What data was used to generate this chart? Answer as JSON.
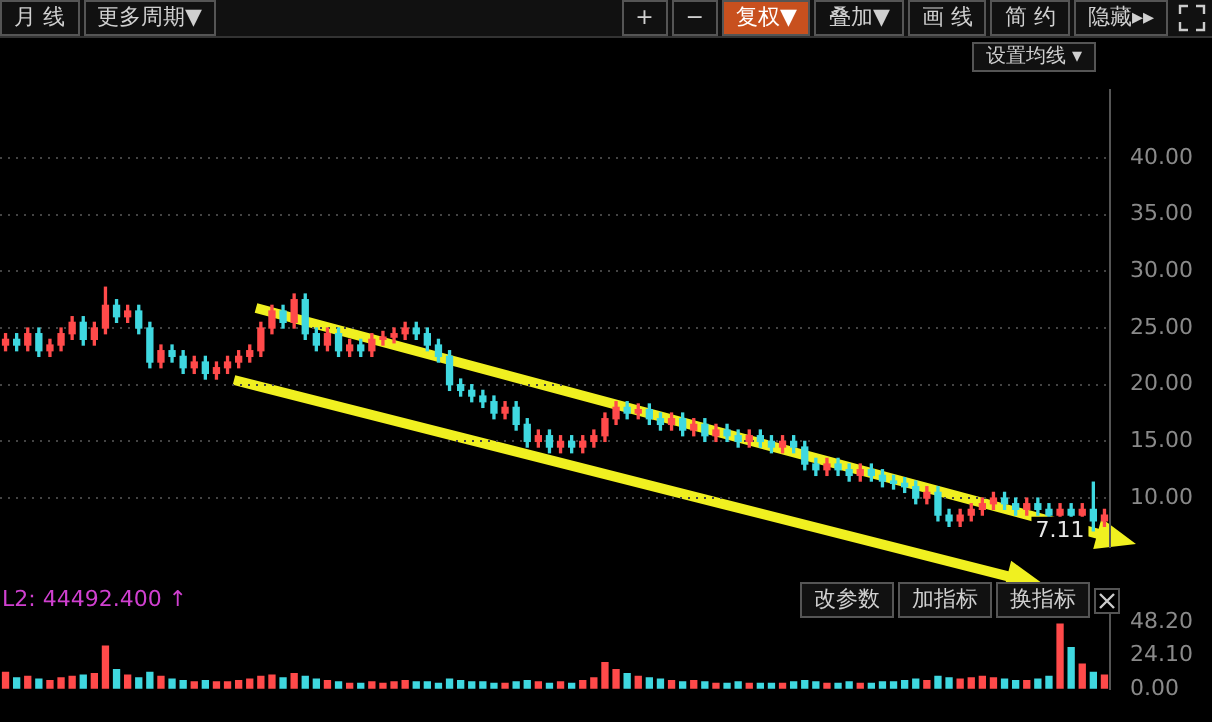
{
  "chart_data": [
    {
      "type": "candlestick",
      "categories": [
        null,
        null,
        null,
        null,
        null,
        null,
        null,
        null,
        null,
        null,
        null,
        null,
        null,
        null,
        null,
        null,
        null,
        null,
        null,
        null,
        null,
        null,
        null,
        null,
        null,
        null,
        null,
        null,
        null,
        null,
        null,
        null,
        null,
        null,
        null,
        null,
        null,
        null,
        null,
        null,
        null,
        null,
        null,
        null,
        null,
        null,
        null,
        null,
        null,
        null,
        null,
        null,
        null,
        null,
        null,
        null,
        null,
        null,
        null,
        null,
        null,
        null,
        null,
        null,
        null,
        null,
        null,
        null,
        null,
        null,
        null,
        null,
        null,
        null,
        null,
        null,
        null,
        null,
        null,
        null,
        null,
        null,
        null,
        null,
        null,
        null,
        null,
        null,
        null,
        null,
        null,
        null,
        null,
        null,
        null,
        null,
        null,
        null,
        null,
        null
      ],
      "ohlc": [
        [
          23.5,
          24.5,
          23,
          24
        ],
        [
          24,
          24.5,
          23,
          23.5
        ],
        [
          23.5,
          25,
          23,
          24.5
        ],
        [
          24.5,
          25,
          22.5,
          23
        ],
        [
          23,
          24,
          22.5,
          23.5
        ],
        [
          23.5,
          25,
          23,
          24.5
        ],
        [
          24.5,
          26,
          24,
          25.5
        ],
        [
          25.5,
          26,
          23.5,
          24
        ],
        [
          24,
          25.5,
          23.5,
          25
        ],
        [
          25,
          28.6,
          24.5,
          27
        ],
        [
          27,
          27.5,
          25.5,
          26
        ],
        [
          26,
          27,
          25.5,
          26.5
        ],
        [
          26.5,
          27,
          24.5,
          25
        ],
        [
          25,
          25.5,
          21.5,
          22
        ],
        [
          22,
          23.5,
          21.5,
          23
        ],
        [
          23,
          23.5,
          22,
          22.5
        ],
        [
          22.5,
          23,
          21,
          21.5
        ],
        [
          21.5,
          22.5,
          21,
          22
        ],
        [
          22,
          22.5,
          20.5,
          21
        ],
        [
          21,
          22,
          20.5,
          21.5
        ],
        [
          21.5,
          22.5,
          21,
          22
        ],
        [
          22,
          23,
          21.5,
          22.5
        ],
        [
          22.5,
          23.5,
          22,
          23
        ],
        [
          23,
          25.5,
          22.5,
          25
        ],
        [
          25,
          27,
          24.5,
          26.5
        ],
        [
          26.5,
          27,
          25,
          25.5
        ],
        [
          25.5,
          28,
          25,
          27.5
        ],
        [
          27.5,
          28,
          24,
          24.5
        ],
        [
          24.5,
          25,
          23,
          23.5
        ],
        [
          23.5,
          25,
          23,
          24.5
        ],
        [
          24.5,
          25,
          22.5,
          23
        ],
        [
          23,
          24,
          22.5,
          23.5
        ],
        [
          23.5,
          24,
          22.5,
          23
        ],
        [
          23,
          24.5,
          22.5,
          24
        ],
        [
          24,
          24.7,
          23.5,
          24.2
        ],
        [
          24.2,
          25,
          23.7,
          24.5
        ],
        [
          24.5,
          25.5,
          24,
          25
        ],
        [
          25,
          25.5,
          24,
          24.5
        ],
        [
          24.5,
          25,
          23,
          23.5
        ],
        [
          23.5,
          24,
          22,
          22.5
        ],
        [
          22.5,
          23,
          19.5,
          20
        ],
        [
          20,
          20.5,
          19,
          19.5
        ],
        [
          19.5,
          20,
          18.5,
          19
        ],
        [
          19,
          19.5,
          18,
          18.5
        ],
        [
          18.5,
          19,
          17,
          17.5
        ],
        [
          17.5,
          18.5,
          17,
          18
        ],
        [
          18,
          18.5,
          16,
          16.5
        ],
        [
          16.5,
          17,
          14.5,
          15
        ],
        [
          15,
          16,
          14.5,
          15.5
        ],
        [
          15.5,
          16,
          14,
          14.5
        ],
        [
          14.5,
          15.5,
          14,
          15
        ],
        [
          15,
          15.5,
          14,
          14.5
        ],
        [
          14.5,
          15.5,
          14,
          15
        ],
        [
          15,
          16,
          14.5,
          15.5
        ],
        [
          15.5,
          17.5,
          15,
          17
        ],
        [
          17,
          18.5,
          16.5,
          18
        ],
        [
          18,
          18.5,
          17,
          17.5
        ],
        [
          17.5,
          18.3,
          17,
          17.8
        ],
        [
          17.8,
          18.3,
          16.5,
          17
        ],
        [
          17,
          17.5,
          16,
          16.5
        ],
        [
          16.5,
          17.5,
          16,
          17
        ],
        [
          17,
          17.5,
          15.5,
          16
        ],
        [
          16,
          17,
          15.5,
          16.5
        ],
        [
          16.5,
          17,
          15,
          15.5
        ],
        [
          15.5,
          16.5,
          15,
          16
        ],
        [
          16,
          16.5,
          15,
          15.5
        ],
        [
          15.5,
          16,
          14.5,
          15
        ],
        [
          15,
          16,
          14.5,
          15.5
        ],
        [
          15.5,
          16,
          14.5,
          15
        ],
        [
          15,
          15.5,
          14,
          14.5
        ],
        [
          14.5,
          15.5,
          14,
          15
        ],
        [
          15,
          15.5,
          14,
          14.5
        ],
        [
          14.5,
          15,
          12.5,
          13
        ],
        [
          13,
          13.5,
          12,
          12.5
        ],
        [
          12.5,
          13.5,
          12,
          13
        ],
        [
          13,
          13.5,
          12,
          12.5
        ],
        [
          12.5,
          13,
          11.5,
          12
        ],
        [
          12,
          13,
          11.5,
          12.5
        ],
        [
          12.5,
          13,
          11.5,
          12
        ],
        [
          12,
          12.5,
          11,
          11.5
        ],
        [
          11.5,
          12,
          10.8,
          11.3
        ],
        [
          11.3,
          11.8,
          10.5,
          11
        ],
        [
          11,
          11.5,
          9.5,
          10
        ],
        [
          10,
          11,
          9.5,
          10.5
        ],
        [
          10.5,
          11,
          8,
          8.5
        ],
        [
          8.5,
          9,
          7.5,
          8
        ],
        [
          8,
          9,
          7.5,
          8.5
        ],
        [
          8.5,
          9.5,
          8,
          9
        ],
        [
          9,
          10,
          8.5,
          9.5
        ],
        [
          9.5,
          10.5,
          9,
          10
        ],
        [
          10,
          10.5,
          9,
          9.5
        ],
        [
          9.5,
          10,
          8.5,
          9
        ],
        [
          9,
          10,
          8.5,
          9.5
        ],
        [
          9.5,
          10,
          8.5,
          9
        ],
        [
          9,
          9.5,
          8,
          8.5
        ],
        [
          8.5,
          9.5,
          8,
          9
        ],
        [
          9,
          9.5,
          8,
          8.5
        ],
        [
          8.5,
          9.5,
          8,
          9
        ],
        [
          9,
          11.4,
          7.11,
          8
        ],
        [
          8,
          9,
          7.5,
          8.5
        ]
      ],
      "colors": [
        "#ff4a4a",
        "#3fd8e0",
        "#ff4a4a",
        "#3fd8e0",
        "#ff4a4a",
        "#ff4a4a",
        "#ff4a4a",
        "#3fd8e0",
        "#ff4a4a",
        "#ff4a4a",
        "#3fd8e0",
        "#ff4a4a",
        "#3fd8e0",
        "#3fd8e0",
        "#ff4a4a",
        "#3fd8e0",
        "#3fd8e0",
        "#ff4a4a",
        "#3fd8e0",
        "#ff4a4a",
        "#ff4a4a",
        "#ff4a4a",
        "#ff4a4a",
        "#ff4a4a",
        "#ff4a4a",
        "#3fd8e0",
        "#ff4a4a",
        "#3fd8e0",
        "#3fd8e0",
        "#ff4a4a",
        "#3fd8e0",
        "#ff4a4a",
        "#3fd8e0",
        "#ff4a4a",
        "#ff4a4a",
        "#ff4a4a",
        "#ff4a4a",
        "#3fd8e0",
        "#3fd8e0",
        "#3fd8e0",
        "#3fd8e0",
        "#3fd8e0",
        "#3fd8e0",
        "#3fd8e0",
        "#3fd8e0",
        "#ff4a4a",
        "#3fd8e0",
        "#3fd8e0",
        "#ff4a4a",
        "#3fd8e0",
        "#ff4a4a",
        "#3fd8e0",
        "#ff4a4a",
        "#ff4a4a",
        "#ff4a4a",
        "#ff4a4a",
        "#3fd8e0",
        "#ff4a4a",
        "#3fd8e0",
        "#3fd8e0",
        "#ff4a4a",
        "#3fd8e0",
        "#ff4a4a",
        "#3fd8e0",
        "#ff4a4a",
        "#3fd8e0",
        "#3fd8e0",
        "#ff4a4a",
        "#3fd8e0",
        "#3fd8e0",
        "#ff4a4a",
        "#3fd8e0",
        "#3fd8e0",
        "#3fd8e0",
        "#ff4a4a",
        "#3fd8e0",
        "#3fd8e0",
        "#ff4a4a",
        "#3fd8e0",
        "#3fd8e0",
        "#3fd8e0",
        "#3fd8e0",
        "#3fd8e0",
        "#ff4a4a",
        "#3fd8e0",
        "#3fd8e0",
        "#ff4a4a",
        "#ff4a4a",
        "#ff4a4a",
        "#ff4a4a",
        "#3fd8e0",
        "#3fd8e0",
        "#ff4a4a",
        "#3fd8e0",
        "#3fd8e0",
        "#ff4a4a",
        "#3fd8e0",
        "#ff4a4a",
        "#3fd8e0",
        "#ff4a4a"
      ],
      "ylim": [
        5.7,
        46
      ],
      "yticks": [
        {
          "value": 10,
          "label": "10.00"
        },
        {
          "value": 15,
          "label": "15.00"
        },
        {
          "value": 20,
          "label": "20.00"
        },
        {
          "value": 25,
          "label": "25.00"
        },
        {
          "value": 30,
          "label": "30.00"
        },
        {
          "value": 35,
          "label": "35.00"
        },
        {
          "value": 40,
          "label": "40.00"
        }
      ],
      "grid": "y",
      "tick_labels": "y",
      "annotations": [
        "月 线",
        "更多周期▼",
        "+",
        "−",
        "复权▼",
        "叠加▼",
        "画 线",
        "简 约",
        "隐藏▸▸",
        "设置均线 ▾",
        {
          "text": "7.11",
          "y": 7.11
        }
      ]
    },
    {
      "type": "bar",
      "title": "L2: 44492.400 ↑",
      "categories": [
        null,
        null,
        null,
        null,
        null,
        null,
        null,
        null,
        null,
        null,
        null,
        null,
        null,
        null,
        null,
        null,
        null,
        null,
        null,
        null,
        null,
        null,
        null,
        null,
        null,
        null,
        null,
        null,
        null,
        null,
        null,
        null,
        null,
        null,
        null,
        null,
        null,
        null,
        null,
        null,
        null,
        null,
        null,
        null,
        null,
        null,
        null,
        null,
        null,
        null,
        null,
        null,
        null,
        null,
        null,
        null,
        null,
        null,
        null,
        null,
        null,
        null,
        null,
        null,
        null,
        null,
        null,
        null,
        null,
        null,
        null,
        null,
        null,
        null,
        null,
        null,
        null,
        null,
        null,
        null,
        null,
        null,
        null,
        null,
        null,
        null,
        null,
        null,
        null,
        null,
        null,
        null,
        null,
        null,
        null,
        null,
        null,
        null,
        null,
        null
      ],
      "values": [
        12,
        8,
        9,
        7,
        6,
        8,
        9,
        10,
        11,
        31,
        14,
        10,
        8,
        12,
        9,
        7,
        6,
        5,
        6,
        5,
        5,
        6,
        7,
        9,
        10,
        8,
        11,
        9,
        7,
        6,
        5,
        4,
        4,
        5,
        4,
        5,
        6,
        5,
        5,
        4,
        7,
        6,
        5,
        5,
        4,
        4,
        5,
        6,
        5,
        4,
        5,
        4,
        6,
        8,
        19,
        14,
        11,
        9,
        8,
        7,
        6,
        5,
        6,
        5,
        4,
        4,
        5,
        4,
        4,
        4,
        4,
        5,
        6,
        5,
        4,
        4,
        5,
        4,
        4,
        5,
        5,
        6,
        7,
        6,
        9,
        8,
        7,
        8,
        9,
        8,
        7,
        6,
        6,
        7,
        9,
        47,
        30,
        18,
        12,
        10
      ],
      "colors": [
        "#ff4a4a",
        "#3fd8e0",
        "#ff4a4a",
        "#3fd8e0",
        "#ff4a4a",
        "#ff4a4a",
        "#ff4a4a",
        "#3fd8e0",
        "#ff4a4a",
        "#ff4a4a",
        "#3fd8e0",
        "#ff4a4a",
        "#3fd8e0",
        "#3fd8e0",
        "#ff4a4a",
        "#3fd8e0",
        "#3fd8e0",
        "#ff4a4a",
        "#3fd8e0",
        "#ff4a4a",
        "#ff4a4a",
        "#ff4a4a",
        "#ff4a4a",
        "#ff4a4a",
        "#ff4a4a",
        "#3fd8e0",
        "#ff4a4a",
        "#3fd8e0",
        "#3fd8e0",
        "#ff4a4a",
        "#3fd8e0",
        "#ff4a4a",
        "#3fd8e0",
        "#ff4a4a",
        "#ff4a4a",
        "#ff4a4a",
        "#ff4a4a",
        "#3fd8e0",
        "#3fd8e0",
        "#3fd8e0",
        "#3fd8e0",
        "#3fd8e0",
        "#3fd8e0",
        "#3fd8e0",
        "#3fd8e0",
        "#ff4a4a",
        "#3fd8e0",
        "#3fd8e0",
        "#ff4a4a",
        "#3fd8e0",
        "#ff4a4a",
        "#3fd8e0",
        "#ff4a4a",
        "#ff4a4a",
        "#ff4a4a",
        "#ff4a4a",
        "#3fd8e0",
        "#ff4a4a",
        "#3fd8e0",
        "#3fd8e0",
        "#ff4a4a",
        "#3fd8e0",
        "#ff4a4a",
        "#3fd8e0",
        "#ff4a4a",
        "#3fd8e0",
        "#3fd8e0",
        "#ff4a4a",
        "#3fd8e0",
        "#3fd8e0",
        "#ff4a4a",
        "#3fd8e0",
        "#3fd8e0",
        "#3fd8e0",
        "#ff4a4a",
        "#3fd8e0",
        "#3fd8e0",
        "#ff4a4a",
        "#3fd8e0",
        "#3fd8e0",
        "#3fd8e0",
        "#3fd8e0",
        "#3fd8e0",
        "#ff4a4a",
        "#3fd8e0",
        "#3fd8e0",
        "#ff4a4a",
        "#ff4a4a",
        "#ff4a4a",
        "#ff4a4a",
        "#3fd8e0",
        "#3fd8e0",
        "#ff4a4a",
        "#3fd8e0",
        "#3fd8e0",
        "#ff4a4a",
        "#3fd8e0",
        "#ff4a4a",
        "#3fd8e0",
        "#ff4a4a"
      ],
      "ylim": [
        0,
        55
      ],
      "yticks": [
        {
          "value": 0,
          "label": "0.00"
        },
        {
          "value": 24.1,
          "label": "24.10"
        },
        {
          "value": 48.2,
          "label": "48.20"
        }
      ],
      "tick_labels": "y",
      "annotations": [
        "改参数",
        "加指标",
        "换指标"
      ]
    }
  ]
}
